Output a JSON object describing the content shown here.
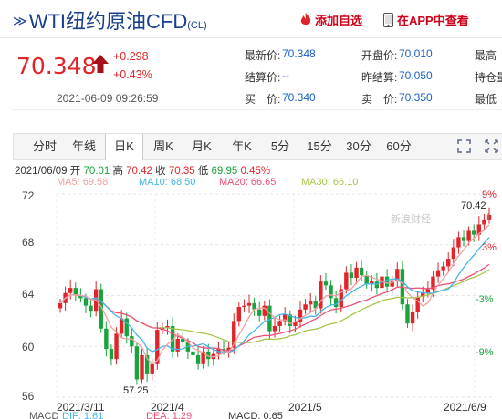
{
  "header": {
    "mark": "≫",
    "title": "WTI纽约原油CFD",
    "code": "(CL)",
    "add_favorite": "添加自选",
    "app_view": "在APP中查看"
  },
  "quote": {
    "price": "70.348",
    "change": "+0.298",
    "change_pct": "+0.43%",
    "datetime": "2021-06-09 09:26:59",
    "fields": [
      {
        "key": "最新价:",
        "value": "70.348"
      },
      {
        "key": "开盘价:",
        "value": "70.010"
      },
      {
        "key": "最高",
        "value": ""
      },
      {
        "key": "结算价:",
        "value": "--"
      },
      {
        "key": "昨结算:",
        "value": "70.050"
      },
      {
        "key": "持仓量",
        "value": ""
      },
      {
        "key": "买　价:",
        "value": "70.340"
      },
      {
        "key": "卖　价:",
        "value": "70.350"
      },
      {
        "key": "最低",
        "value": ""
      }
    ]
  },
  "tabs": [
    "分时",
    "年线",
    "日K",
    "周K",
    "月K",
    "年K",
    "5分",
    "15分",
    "30分",
    "60分"
  ],
  "active_tab": "日K",
  "icons": [
    "expand-icon",
    "fullscreen-icon"
  ],
  "ohlc": {
    "date": "2021/06/09",
    "open_label": "开",
    "open": "70.01",
    "high_label": "高",
    "high": "70.42",
    "close_label": "收",
    "close": "70.35",
    "low_label": "低",
    "low": "69.95",
    "change_pct": "0.45%"
  },
  "ma": [
    {
      "label": "MA5: 69.58",
      "color": "#f0a0a0"
    },
    {
      "label": "MA10: 68.50",
      "color": "#45b5e5"
    },
    {
      "label": "MA20: 66.65",
      "color": "#ef4f78"
    },
    {
      "label": "MA30: 66.10",
      "color": "#a5c64a"
    }
  ],
  "watermark": "新浪财经",
  "chart_data": {
    "type": "candlestick",
    "y_ticks": [
      "72",
      "68",
      "64",
      "60",
      "56"
    ],
    "pct_ticks": [
      "9%",
      "3%",
      "-3%",
      "-9%"
    ],
    "x_labels": [
      "2021/3/11",
      "2021/4",
      "2021/5",
      "2021/6/9"
    ],
    "max_label": "70.42",
    "min_label": "57.25",
    "ylim": [
      56,
      72
    ],
    "grid": true
  },
  "macd": {
    "title": "MACD",
    "dif": "DIF: 1.61",
    "dea": "DEA: 1.29",
    "macd": "MACD: 0.65"
  },
  "colors": {
    "up": "#e0242a",
    "down": "#19a33c",
    "accent": "#1a3f8c",
    "value": "#1a62c6"
  }
}
